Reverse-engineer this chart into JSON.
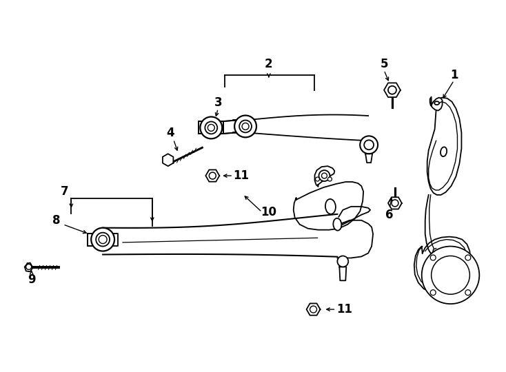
{
  "bg_color": "#ffffff",
  "lc": "#000000",
  "lw": 1.3,
  "figsize": [
    7.34,
    5.4
  ],
  "dpi": 100
}
